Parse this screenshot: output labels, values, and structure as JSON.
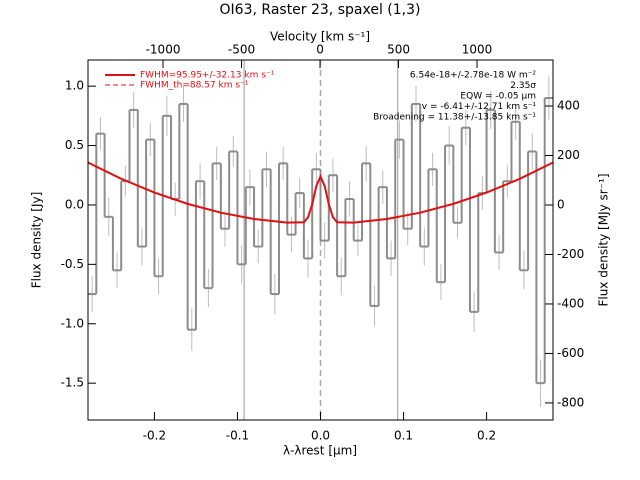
{
  "chart_data": {
    "type": "line",
    "title": "OI63, Raster 23, spaxel (1,3)",
    "xlabel": "λ-λrest [μm]",
    "ylabel": "Flux density [Jy]",
    "x2label": "Velocity [km s⁻¹]",
    "y2label": "Flux density [MJy sr⁻¹]",
    "xlim": [
      -0.28,
      0.28
    ],
    "xticks": [
      -0.2,
      -0.1,
      {
        "value": 0,
        "label": "0.0"
      },
      0.1,
      0.2
    ],
    "ylim": [
      -1.81,
      1.22
    ],
    "yticks": [
      -1.5,
      {
        "value": -1,
        "label": "-1.0"
      },
      -0.5,
      {
        "value": 0,
        "label": "0.0"
      },
      0.5,
      {
        "value": 1,
        "label": "1.0"
      }
    ],
    "x2lim": [
      -1478,
      1484
    ],
    "x2ticks": [
      -1000,
      -500,
      0,
      500,
      1000
    ],
    "y2lim": [
      -869,
      586
    ],
    "y2ticks": [
      -800,
      -600,
      -400,
      -200,
      0,
      200,
      400
    ],
    "vlines": [
      -0.092,
      0.093
    ],
    "dashed_vlines": [
      0
    ],
    "series": [
      {
        "name": "Flux density",
        "color": "#8c8c8c",
        "step": true,
        "error_color": "#bdbdbd",
        "x": [
          -0.275,
          -0.265,
          -0.255,
          -0.245,
          -0.235,
          -0.225,
          -0.215,
          -0.205,
          -0.195,
          -0.185,
          -0.175,
          -0.165,
          -0.155,
          -0.145,
          -0.135,
          -0.125,
          -0.115,
          -0.105,
          -0.095,
          -0.085,
          -0.075,
          -0.065,
          -0.055,
          -0.045,
          -0.035,
          -0.025,
          -0.015,
          -0.005,
          0.005,
          0.015,
          0.025,
          0.035,
          0.045,
          0.055,
          0.065,
          0.075,
          0.085,
          0.095,
          0.105,
          0.115,
          0.125,
          0.135,
          0.145,
          0.155,
          0.165,
          0.175,
          0.185,
          0.195,
          0.205,
          0.215,
          0.225,
          0.235,
          0.245,
          0.255,
          0.265,
          0.275
        ],
        "values": [
          -0.75,
          0.6,
          -0.1,
          -0.55,
          0.2,
          0.8,
          -0.35,
          0.55,
          -0.6,
          0.75,
          0.05,
          0.85,
          -1.05,
          0.2,
          -0.7,
          0.35,
          -0.2,
          0.45,
          -0.5,
          0.15,
          -0.35,
          0.3,
          -0.75,
          0.35,
          -0.25,
          0.1,
          -0.45,
          0.3,
          -0.3,
          0.25,
          -0.6,
          0.05,
          -0.3,
          0.35,
          -0.85,
          0.15,
          -0.45,
          0.55,
          -0.2,
          0.85,
          -0.35,
          0.3,
          -0.65,
          0.5,
          -0.15,
          0.65,
          -0.9,
          0.1,
          0.8,
          -0.4,
          0.2,
          0.7,
          -0.55,
          0.45,
          -1.5,
          0.9
        ],
        "errors": [
          0.15,
          0.14,
          0.16,
          0.15,
          0.13,
          0.15,
          0.16,
          0.14,
          0.15,
          0.17,
          0.14,
          0.15,
          0.18,
          0.15,
          0.16,
          0.14,
          0.15,
          0.13,
          0.16,
          0.15,
          0.14,
          0.15,
          0.17,
          0.14,
          0.15,
          0.13,
          0.16,
          0.14,
          0.15,
          0.14,
          0.16,
          0.15,
          0.13,
          0.15,
          0.17,
          0.14,
          0.15,
          0.16,
          0.14,
          0.15,
          0.16,
          0.14,
          0.15,
          0.16,
          0.13,
          0.15,
          0.17,
          0.14,
          0.16,
          0.15,
          0.14,
          0.15,
          0.16,
          0.15,
          0.2,
          0.18
        ]
      },
      {
        "name": "FWHM=95.95+/-32.13 km s⁻¹",
        "color": "#e01010",
        "x": [
          -0.28,
          -0.24,
          -0.2,
          -0.16,
          -0.12,
          -0.08,
          -0.04,
          -0.02,
          -0.015,
          -0.01,
          -0.005,
          0,
          0.005,
          0.01,
          0.015,
          0.02,
          0.04,
          0.08,
          0.12,
          0.16,
          0.2,
          0.24,
          0.28
        ],
        "values": [
          0.357,
          0.22,
          0.104,
          0.009,
          -0.065,
          -0.118,
          -0.149,
          -0.146,
          -0.104,
          0.005,
          0.16,
          0.24,
          0.16,
          0.005,
          -0.104,
          -0.146,
          -0.149,
          -0.118,
          -0.065,
          0.009,
          0.104,
          0.22,
          0.357
        ]
      }
    ],
    "legend": [
      {
        "label": "FWHM=95.95+/-32.13 km s⁻¹",
        "color": "#e01010",
        "dashed": false
      },
      {
        "label": "FWHM_th=88.57 km s⁻¹",
        "color": "#e01010",
        "dashed": true
      }
    ],
    "annotations": [
      "6.54e-18+/-2.78e-18 W m⁻²",
      "2.35σ",
      "EQW = -0.05 μm",
      "v = -6.41+/-12.71 km s⁻¹",
      "Broadening = 11.38+/-13.85 km s⁻¹"
    ]
  }
}
